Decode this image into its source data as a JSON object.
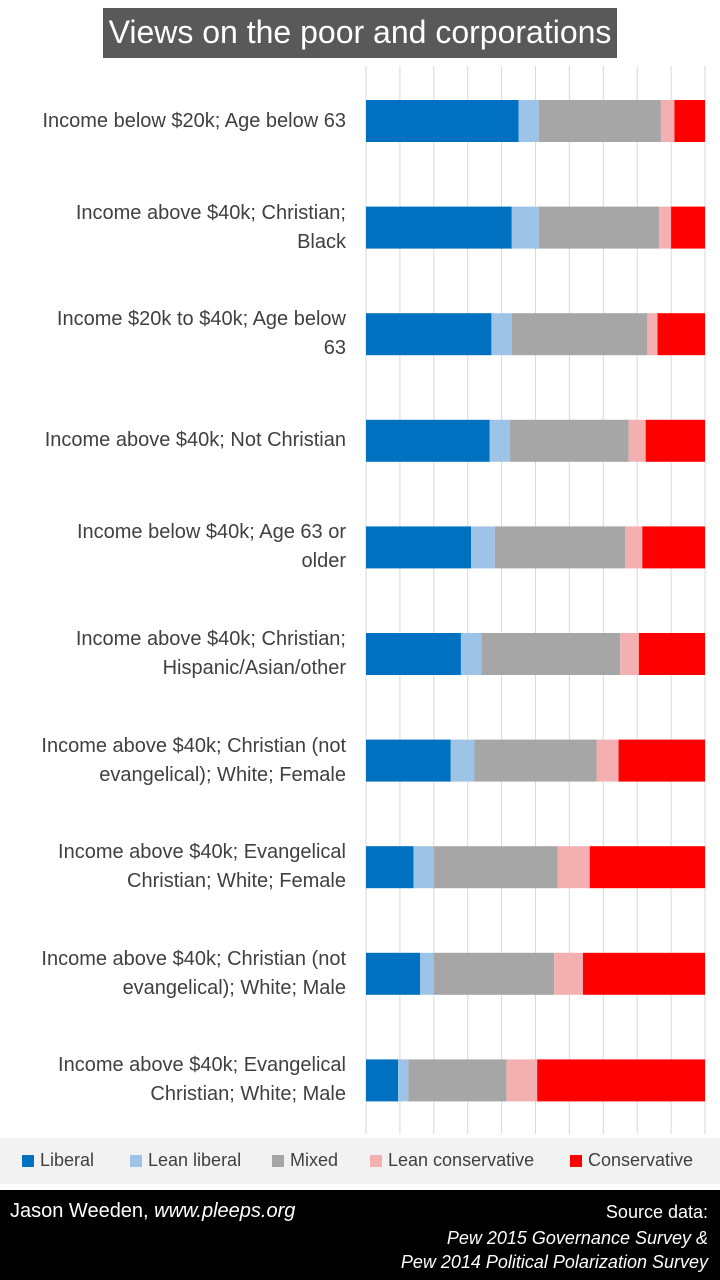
{
  "title": "Views on the poor and corporations",
  "chart_data": {
    "type": "bar",
    "stacked": true,
    "orientation": "horizontal",
    "normalized": true,
    "grid": true,
    "legend_position": "bottom",
    "categories": [
      [
        "Income below $20k; Age below 63"
      ],
      [
        "Income above $40k; Christian;",
        "Black"
      ],
      [
        "Income $20k to $40k; Age below",
        "63"
      ],
      [
        "Income above $40k; Not Christian"
      ],
      [
        "Income below $40k; Age 63 or",
        "older"
      ],
      [
        "Income above $40k; Christian;",
        "Hispanic/Asian/other"
      ],
      [
        "Income above $40k; Christian (not",
        "evangelical); White; Female"
      ],
      [
        "Income above $40k; Evangelical",
        "Christian; White; Female"
      ],
      [
        "Income above $40k; Christian (not",
        "evangelical); White; Male"
      ],
      [
        "Income above $40k; Evangelical",
        "Christian; White; Male"
      ]
    ],
    "series": [
      {
        "name": "Liberal",
        "color": "#0070c0",
        "values": [
          0.45,
          0.43,
          0.37,
          0.365,
          0.31,
          0.28,
          0.25,
          0.14,
          0.16,
          0.095
        ]
      },
      {
        "name": "Lean liberal",
        "color": "#9dc3e6",
        "values": [
          0.06,
          0.08,
          0.06,
          0.06,
          0.07,
          0.06,
          0.07,
          0.06,
          0.04,
          0.03
        ]
      },
      {
        "name": "Mixed",
        "color": "#a6a6a6",
        "values": [
          0.36,
          0.355,
          0.4,
          0.35,
          0.385,
          0.41,
          0.36,
          0.365,
          0.355,
          0.29
        ]
      },
      {
        "name": "Lean conservative",
        "color": "#f4b0b0",
        "values": [
          0.04,
          0.035,
          0.03,
          0.05,
          0.05,
          0.055,
          0.065,
          0.095,
          0.085,
          0.09
        ]
      },
      {
        "name": "Conservative",
        "color": "#ff0000",
        "values": [
          0.09,
          0.1,
          0.14,
          0.175,
          0.185,
          0.195,
          0.255,
          0.34,
          0.36,
          0.495
        ]
      }
    ]
  },
  "footer": {
    "author": "Jason Weeden, ",
    "author_site": "www.pleeps.org",
    "source_head": "Source data:",
    "source_1": "Pew 2015 Governance Survey &",
    "source_2": "Pew 2014 Political Polarization Survey"
  }
}
